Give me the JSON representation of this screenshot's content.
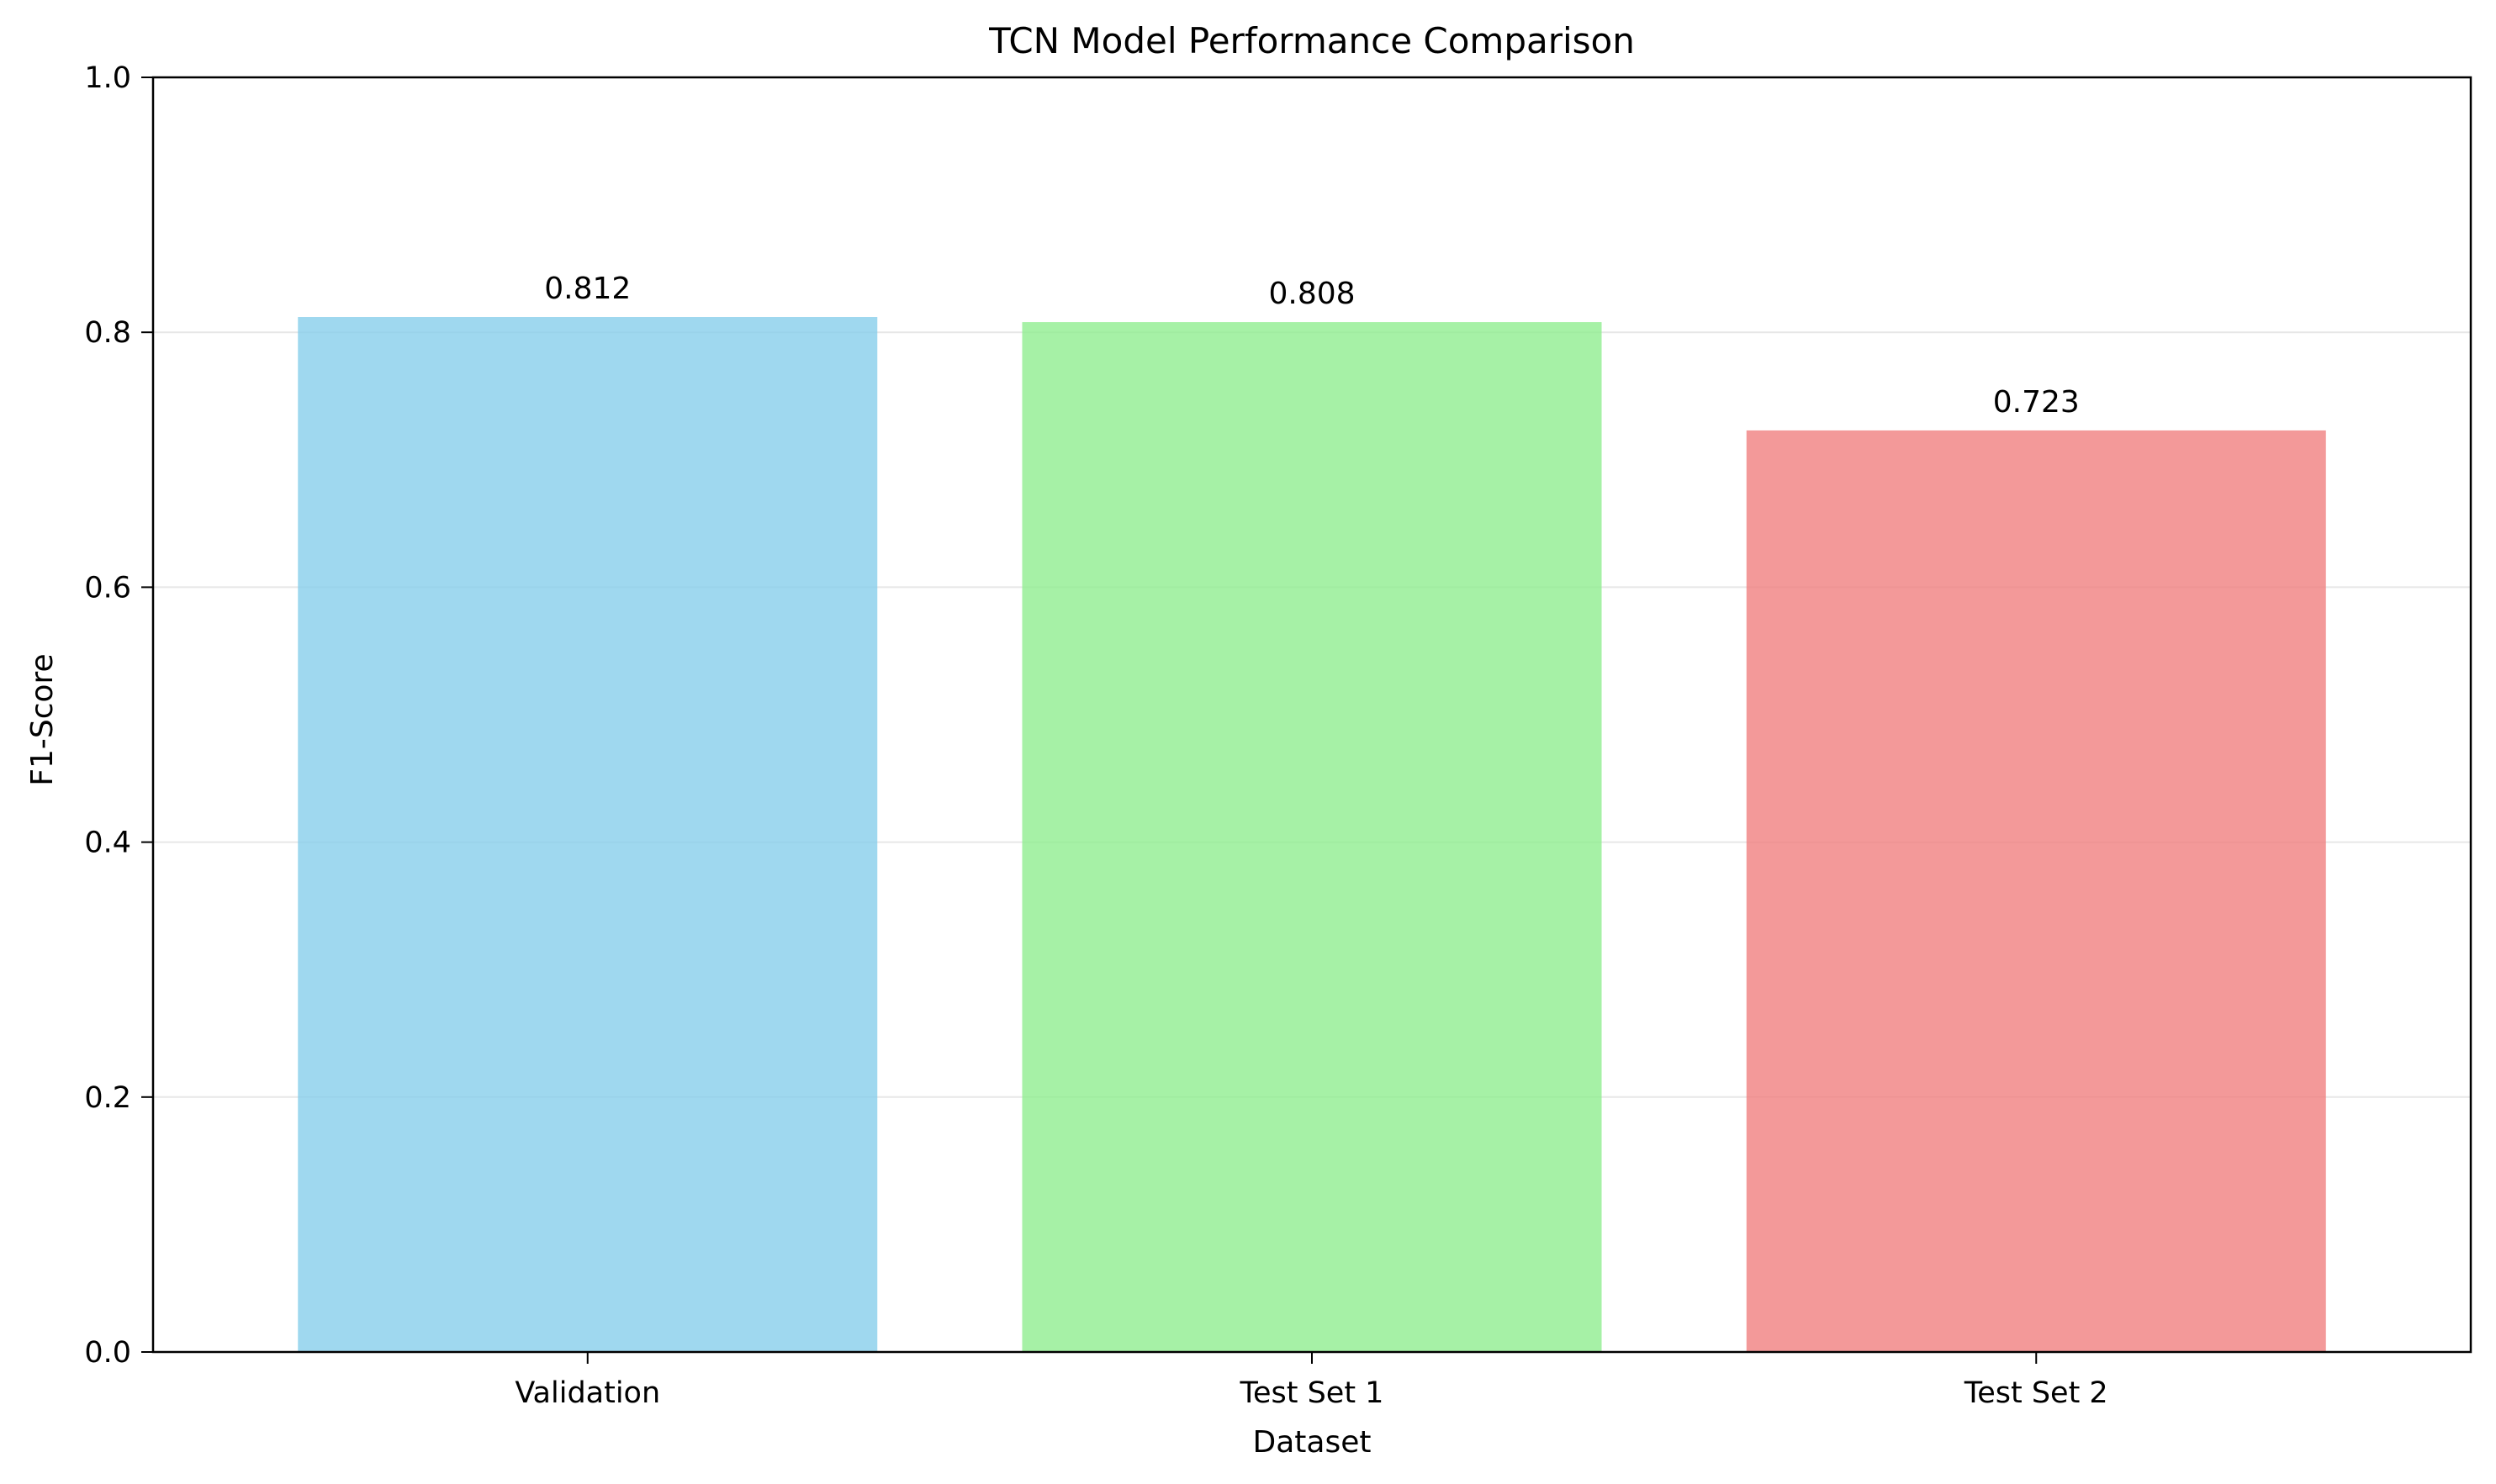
{
  "chart_data": {
    "type": "bar",
    "title": "TCN Model Performance Comparison",
    "xlabel": "Dataset",
    "ylabel": "F1-Score",
    "categories": [
      "Validation",
      "Test Set 1",
      "Test Set 2"
    ],
    "values": [
      0.812,
      0.808,
      0.723
    ],
    "value_labels": [
      "0.812",
      "0.808",
      "0.723"
    ],
    "colors": [
      "#87CEEB",
      "#90EE90",
      "#F08080"
    ],
    "bar_opacity": 0.8,
    "ylim": [
      0,
      1.0
    ],
    "yticks": [
      0.0,
      0.2,
      0.4,
      0.6,
      0.8,
      1.0
    ],
    "ytick_labels": [
      "0.0",
      "0.2",
      "0.4",
      "0.6",
      "0.8",
      "1.0"
    ],
    "grid": "horizontal",
    "legend": "none"
  }
}
